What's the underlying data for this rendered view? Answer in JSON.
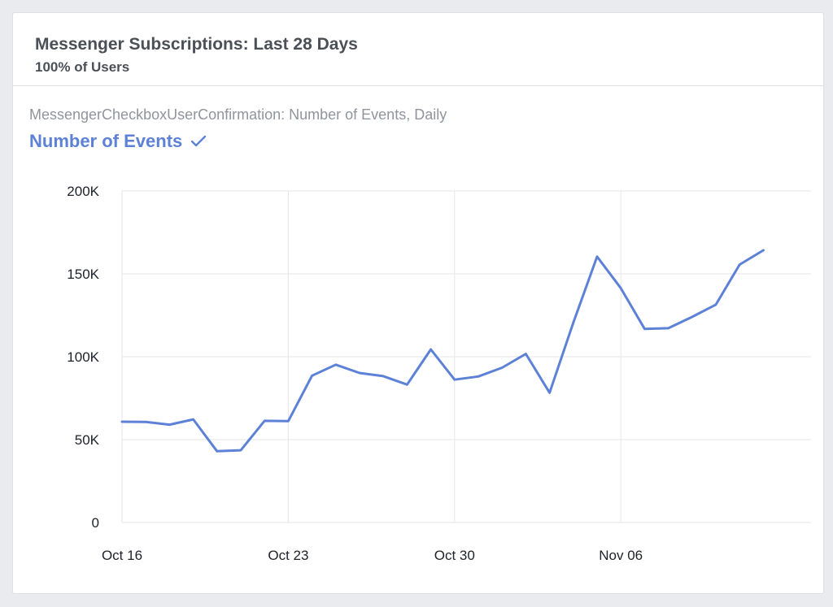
{
  "card": {
    "title": "Messenger Subscriptions: Last 28 Days",
    "subtitle": "100% of Users",
    "metric_caption": "MessengerCheckboxUserConfirmation: Number of Events, Daily",
    "metric_name": "Number of Events",
    "check_icon": "checkmark-icon"
  },
  "colors": {
    "line": "#5d81d6",
    "grid": "#e5e6e9",
    "title": "#4b4f56",
    "caption": "#90949c"
  },
  "chart_data": {
    "type": "line",
    "title": "",
    "xlabel": "",
    "ylabel": "",
    "ylim": [
      0,
      200000
    ],
    "yticks": [
      0,
      50000,
      100000,
      150000,
      200000
    ],
    "ytick_labels": [
      "0",
      "50K",
      "100K",
      "150K",
      "200K"
    ],
    "xtick_labels": [
      "Oct 16",
      "Oct 23",
      "Oct 30",
      "Nov 06"
    ],
    "xtick_index": [
      0,
      7,
      14,
      21
    ],
    "grid": true,
    "x": [
      "Oct 16",
      "Oct 17",
      "Oct 18",
      "Oct 19",
      "Oct 20",
      "Oct 21",
      "Oct 22",
      "Oct 23",
      "Oct 24",
      "Oct 25",
      "Oct 26",
      "Oct 27",
      "Oct 28",
      "Oct 29",
      "Oct 30",
      "Oct 31",
      "Nov 01",
      "Nov 02",
      "Nov 03",
      "Nov 04",
      "Nov 05",
      "Nov 06",
      "Nov 07",
      "Nov 08",
      "Nov 09",
      "Nov 10",
      "Nov 11",
      "Nov 12",
      "Nov 13"
    ],
    "series": [
      {
        "values": [
          60800,
          60700,
          59000,
          62200,
          43000,
          43600,
          61300,
          61200,
          88600,
          95200,
          90200,
          88300,
          83200,
          104400,
          86200,
          88100,
          93400,
          101700,
          78300,
          120600,
          160400,
          141300,
          116800,
          117200,
          124000,
          131400,
          155600,
          164200,
          null
        ]
      }
    ]
  }
}
